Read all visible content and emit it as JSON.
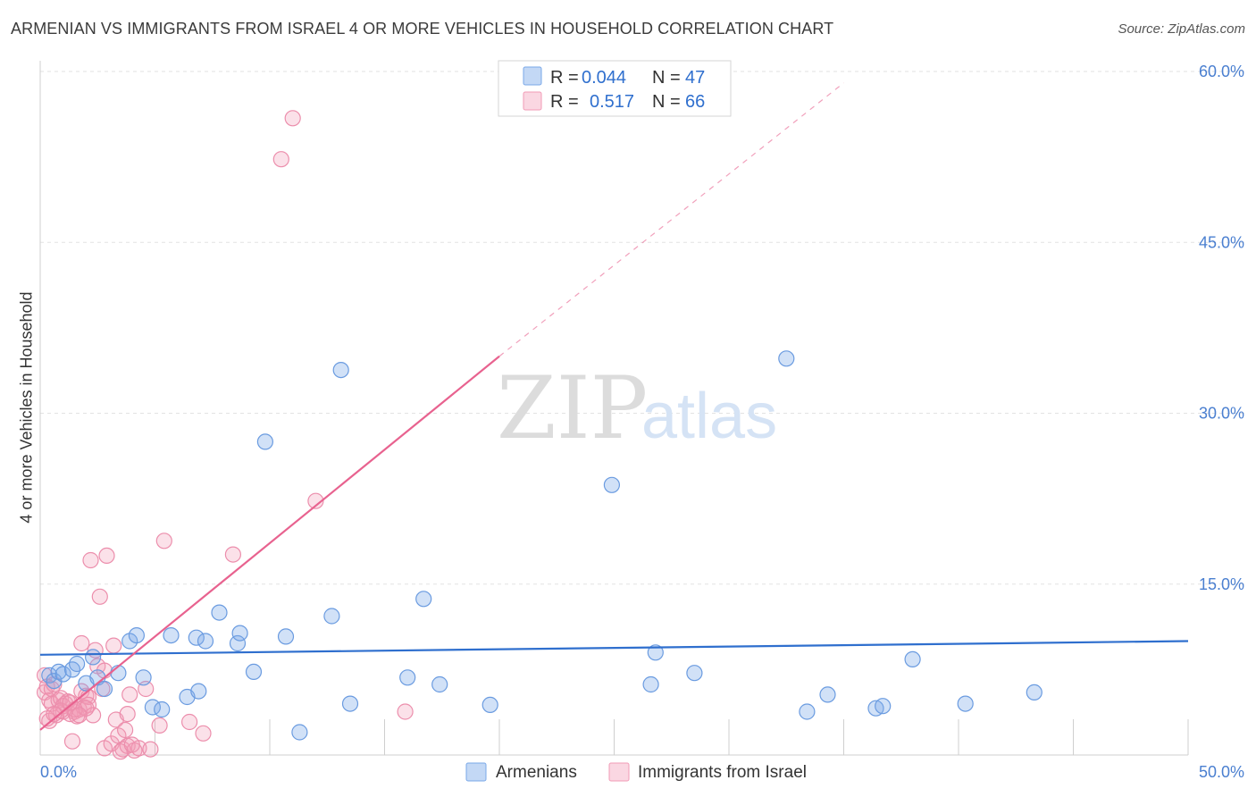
{
  "title": "ARMENIAN VS IMMIGRANTS FROM ISRAEL 4 OR MORE VEHICLES IN HOUSEHOLD CORRELATION CHART",
  "source": "Source: ZipAtlas.com",
  "watermark": {
    "zip": "ZIP",
    "atlas": "atlas"
  },
  "legend": {
    "rows": [
      {
        "r_label": "R =",
        "r_value": "0.044",
        "n_label": "N =",
        "n_value": "47",
        "color": "#7aa8e8"
      },
      {
        "r_label": "R =",
        "r_value": "0.517",
        "n_label": "N =",
        "n_value": "66",
        "color": "#f29bb6"
      }
    ]
  },
  "bottom_legend": [
    "Armenians",
    "Immigrants from Israel"
  ],
  "chart_data": {
    "type": "scatter",
    "title": "ARMENIAN VS IMMIGRANTS FROM ISRAEL 4 OR MORE VEHICLES IN HOUSEHOLD CORRELATION CHART",
    "xlabel": "",
    "ylabel": "4 or more Vehicles in Household",
    "xlim": [
      0,
      50
    ],
    "ylim": [
      0,
      60
    ],
    "x_tick_labels": [
      "0.0%",
      "50.0%"
    ],
    "y_ticks": [
      15,
      30,
      45,
      60
    ],
    "y_tick_labels": [
      "15.0%",
      "30.0%",
      "45.0%",
      "60.0%"
    ],
    "series": [
      {
        "name": "Armenians",
        "color": "#7aa8e8",
        "trend": {
          "x": [
            0,
            50
          ],
          "y": [
            8.8,
            10.0
          ],
          "color": "#2f6fce"
        },
        "points": [
          [
            0.4,
            7.0
          ],
          [
            0.6,
            6.5
          ],
          [
            0.8,
            7.3
          ],
          [
            1.0,
            7.1
          ],
          [
            1.4,
            7.5
          ],
          [
            1.6,
            8.0
          ],
          [
            2.0,
            6.3
          ],
          [
            2.3,
            8.6
          ],
          [
            2.5,
            6.8
          ],
          [
            2.8,
            5.8
          ],
          [
            3.4,
            7.2
          ],
          [
            3.9,
            10.0
          ],
          [
            4.2,
            10.5
          ],
          [
            4.5,
            6.8
          ],
          [
            4.9,
            4.2
          ],
          [
            5.3,
            4.0
          ],
          [
            5.7,
            10.5
          ],
          [
            6.4,
            5.1
          ],
          [
            6.8,
            10.3
          ],
          [
            6.9,
            5.6
          ],
          [
            7.2,
            10.0
          ],
          [
            7.8,
            12.5
          ],
          [
            8.6,
            9.8
          ],
          [
            8.7,
            10.7
          ],
          [
            9.3,
            7.3
          ],
          [
            9.8,
            27.5
          ],
          [
            10.7,
            10.4
          ],
          [
            11.3,
            2.0
          ],
          [
            12.7,
            12.2
          ],
          [
            13.1,
            33.8
          ],
          [
            13.5,
            4.5
          ],
          [
            16.0,
            6.8
          ],
          [
            16.7,
            13.7
          ],
          [
            17.4,
            6.2
          ],
          [
            19.6,
            4.4
          ],
          [
            24.9,
            23.7
          ],
          [
            26.6,
            6.2
          ],
          [
            26.8,
            9.0
          ],
          [
            28.5,
            7.2
          ],
          [
            32.5,
            34.8
          ],
          [
            33.4,
            3.8
          ],
          [
            34.3,
            5.3
          ],
          [
            36.4,
            4.1
          ],
          [
            36.7,
            4.3
          ],
          [
            38.0,
            8.4
          ],
          [
            40.3,
            4.5
          ],
          [
            43.3,
            5.5
          ]
        ]
      },
      {
        "name": "Immigrants from Israel",
        "color": "#f29bb6",
        "trend": {
          "x": [
            0,
            20
          ],
          "y": [
            2.2,
            35.0
          ],
          "dashed_to": {
            "x": 35,
            "y": 59.0
          },
          "color": "#e8628f"
        },
        "points": [
          [
            0.2,
            7.0
          ],
          [
            0.2,
            5.5
          ],
          [
            0.3,
            6.0
          ],
          [
            0.4,
            4.8
          ],
          [
            0.4,
            3.0
          ],
          [
            0.5,
            5.8
          ],
          [
            0.5,
            4.5
          ],
          [
            0.7,
            3.5
          ],
          [
            0.8,
            4.8
          ],
          [
            0.9,
            5.0
          ],
          [
            1.0,
            3.8
          ],
          [
            1.1,
            4.5
          ],
          [
            1.2,
            4.7
          ],
          [
            1.3,
            3.6
          ],
          [
            1.4,
            1.2
          ],
          [
            1.5,
            3.8
          ],
          [
            1.6,
            3.4
          ],
          [
            1.7,
            4.0
          ],
          [
            1.8,
            5.6
          ],
          [
            1.8,
            9.8
          ],
          [
            1.9,
            4.2
          ],
          [
            2.0,
            5.2
          ],
          [
            2.1,
            5.1
          ],
          [
            2.1,
            4.4
          ],
          [
            2.2,
            17.1
          ],
          [
            2.3,
            3.5
          ],
          [
            2.4,
            9.2
          ],
          [
            2.5,
            7.8
          ],
          [
            2.6,
            13.9
          ],
          [
            2.7,
            5.8
          ],
          [
            2.8,
            7.4
          ],
          [
            2.8,
            0.6
          ],
          [
            2.9,
            17.5
          ],
          [
            3.1,
            1.0
          ],
          [
            3.2,
            9.6
          ],
          [
            3.3,
            3.1
          ],
          [
            3.4,
            1.7
          ],
          [
            3.6,
            0.5
          ],
          [
            3.7,
            2.2
          ],
          [
            3.8,
            3.6
          ],
          [
            3.8,
            0.8
          ],
          [
            3.9,
            5.3
          ],
          [
            4.1,
            0.4
          ],
          [
            4.3,
            0.6
          ],
          [
            4.6,
            5.8
          ],
          [
            4.8,
            0.5
          ],
          [
            5.2,
            2.6
          ],
          [
            5.4,
            18.8
          ],
          [
            6.5,
            2.9
          ],
          [
            7.1,
            1.9
          ],
          [
            8.4,
            17.6
          ],
          [
            10.5,
            52.3
          ],
          [
            11.0,
            55.9
          ],
          [
            12.0,
            22.3
          ],
          [
            15.9,
            3.8
          ],
          [
            0.3,
            3.2
          ],
          [
            0.6,
            6.2
          ],
          [
            1.0,
            4.3
          ],
          [
            1.5,
            4.0
          ],
          [
            0.9,
            3.9
          ],
          [
            1.3,
            4.6
          ],
          [
            2.0,
            4.1
          ],
          [
            0.6,
            3.6
          ],
          [
            1.7,
            3.5
          ],
          [
            3.5,
            0.3
          ],
          [
            4.0,
            0.9
          ]
        ]
      }
    ]
  }
}
